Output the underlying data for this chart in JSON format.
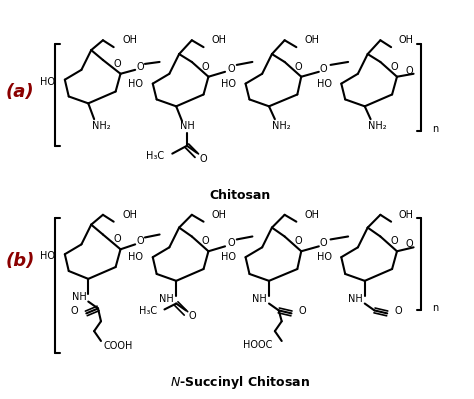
{
  "title_a": "(a)",
  "title_b": "(b)",
  "label_a": "Chitosan",
  "label_b": "N-Succinyl Chitosan",
  "bg_color": "#ffffff",
  "text_color": "#000000",
  "label_color": "#8b0000",
  "figsize": [
    4.74,
    3.99
  ],
  "dpi": 100
}
